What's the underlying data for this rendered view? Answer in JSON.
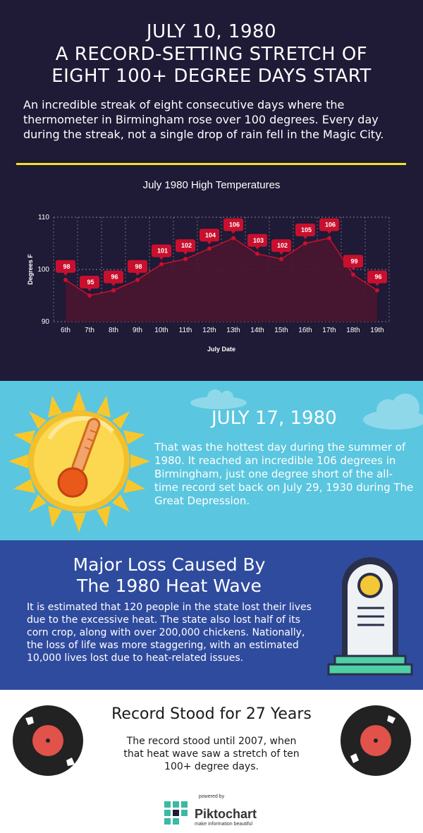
{
  "header": {
    "title_line1": "JULY 10, 1980",
    "title_line2": "A RECORD-SETTING STRETCH OF",
    "title_line3": "EIGHT 100+ DEGREE DAYS START",
    "intro": "An incredible streak of eight consecutive days where the thermometer in Birmingham rose over 100 degrees. Every day during the streak, not a single drop of rain fell in the Magic City."
  },
  "colors": {
    "navy": "#1f1a36",
    "accent_yellow": "#f3e326",
    "sky": "#5bc6df",
    "blue": "#2f4b9e",
    "series_red": "#c8102e",
    "fill_maroon": "#4a1530"
  },
  "chart_data": {
    "type": "area",
    "title": "July 1980 High Temperatures",
    "xlabel": "July Date",
    "ylabel": "Degrees F",
    "categories": [
      "6th",
      "7th",
      "8th",
      "9th",
      "10th",
      "11th",
      "12th",
      "13th",
      "14th",
      "15th",
      "16th",
      "17th",
      "18th",
      "19th"
    ],
    "values": [
      98,
      95,
      96,
      98,
      101,
      102,
      104,
      106,
      103,
      102,
      105,
      106,
      99,
      96
    ],
    "ylim": [
      90,
      110
    ],
    "yticks": [
      90,
      100,
      110
    ],
    "grid": true,
    "data_labels": true
  },
  "hottest": {
    "heading": "JULY 17, 1980",
    "text": "That was the hottest day during the summer of 1980. It reached an incredible 106 degrees in Birmingham, just one degree short of the all-time record set back on July 29, 1930 during The Great Depression."
  },
  "loss": {
    "heading_line1": "Major Loss Caused By",
    "heading_line2": "The 1980 Heat Wave",
    "text": "It is estimated that 120 people in the state lost their lives due to the excessive heat. The state also lost half of its corn crop, along with over 200,000 chickens. Nationally, the loss of life was more staggering, with an estimated 10,000 lives lost due to heat-related issues."
  },
  "record": {
    "heading": "Record Stood for 27 Years",
    "text": "The record stood until 2007, when that heat wave saw a stretch of ten 100+ degree days."
  },
  "footer": {
    "powered_by": "powered by",
    "brand": "Piktochart",
    "tagline": "make information beautiful"
  }
}
